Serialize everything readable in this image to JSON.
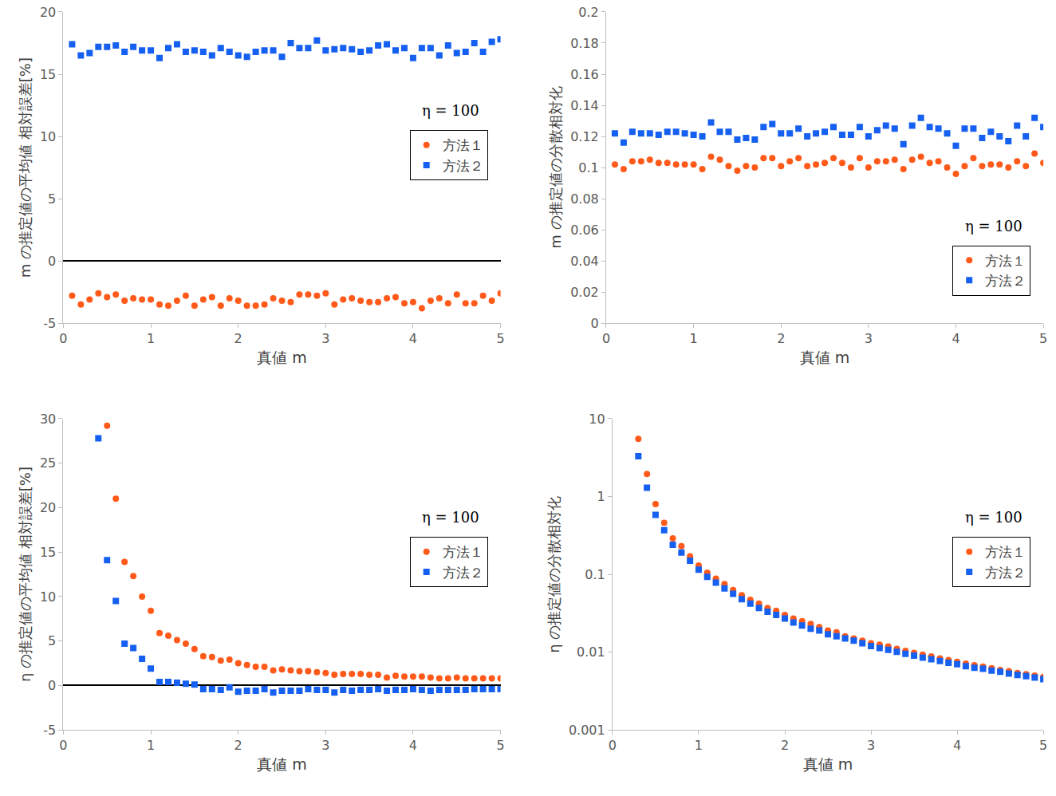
{
  "chart_data": [
    {
      "type": "scatter",
      "xlabel": "真値 m",
      "ylabel": "m の推定値の平均値 相対誤差[%]",
      "annotation": "η = 100",
      "xlim": [
        0,
        5
      ],
      "xticks": [
        0,
        1,
        2,
        3,
        4,
        5
      ],
      "ylim": [
        -5,
        20
      ],
      "yticks": [
        -5,
        0,
        5,
        10,
        15,
        20
      ],
      "grid": false,
      "legend": "right",
      "x": [
        0.1,
        0.2,
        0.3,
        0.4,
        0.5,
        0.6,
        0.7,
        0.8,
        0.9,
        1.0,
        1.1,
        1.2,
        1.3,
        1.4,
        1.5,
        1.6,
        1.7,
        1.8,
        1.9,
        2.0,
        2.1,
        2.2,
        2.3,
        2.4,
        2.5,
        2.6,
        2.7,
        2.8,
        2.9,
        3.0,
        3.1,
        3.2,
        3.3,
        3.4,
        3.5,
        3.6,
        3.7,
        3.8,
        3.9,
        4.0,
        4.1,
        4.2,
        4.3,
        4.4,
        4.5,
        4.6,
        4.7,
        4.8,
        4.9,
        5.0
      ],
      "series": [
        {
          "name": "方法１",
          "color": "#ff5a1a",
          "marker": "circle",
          "values": [
            -2.8,
            -3.5,
            -3.1,
            -2.6,
            -2.9,
            -2.7,
            -3.2,
            -3.0,
            -3.1,
            -3.1,
            -3.5,
            -3.6,
            -3.2,
            -2.8,
            -3.6,
            -3.1,
            -2.9,
            -3.6,
            -3.0,
            -3.2,
            -3.6,
            -3.6,
            -3.5,
            -3.0,
            -3.2,
            -3.3,
            -2.7,
            -2.7,
            -2.8,
            -2.6,
            -3.5,
            -3.1,
            -3.0,
            -3.2,
            -3.3,
            -3.3,
            -3.0,
            -2.9,
            -3.4,
            -3.3,
            -3.8,
            -3.2,
            -3.0,
            -3.4,
            -2.7,
            -3.4,
            -3.4,
            -2.8,
            -3.2,
            -2.6
          ]
        },
        {
          "name": "方法２",
          "color": "#1560f0",
          "marker": "square",
          "values": [
            17.4,
            16.5,
            16.7,
            17.2,
            17.2,
            17.3,
            16.8,
            17.2,
            16.9,
            16.9,
            16.3,
            17.1,
            17.4,
            16.8,
            16.9,
            16.8,
            16.5,
            17.1,
            16.8,
            16.5,
            16.4,
            16.8,
            16.9,
            16.9,
            16.4,
            17.5,
            17.1,
            17.1,
            17.7,
            16.9,
            17.0,
            17.1,
            17.0,
            16.8,
            16.9,
            17.3,
            17.4,
            16.9,
            17.1,
            16.3,
            17.1,
            17.1,
            16.5,
            17.3,
            16.7,
            16.8,
            17.5,
            16.8,
            17.6,
            17.8
          ]
        }
      ]
    },
    {
      "type": "scatter",
      "xlabel": "真値 m",
      "ylabel": "m の推定値の分散相対化",
      "annotation": "η = 100",
      "xlim": [
        0,
        5
      ],
      "xticks": [
        0,
        1,
        2,
        3,
        4,
        5
      ],
      "ylim": [
        0,
        0.2
      ],
      "yticks": [
        0,
        0.02,
        0.04,
        0.06,
        0.08,
        0.1,
        0.12,
        0.14,
        0.16,
        0.18,
        0.2
      ],
      "grid": false,
      "legend": "lower right",
      "x": [
        0.1,
        0.2,
        0.3,
        0.4,
        0.5,
        0.6,
        0.7,
        0.8,
        0.9,
        1.0,
        1.1,
        1.2,
        1.3,
        1.4,
        1.5,
        1.6,
        1.7,
        1.8,
        1.9,
        2.0,
        2.1,
        2.2,
        2.3,
        2.4,
        2.5,
        2.6,
        2.7,
        2.8,
        2.9,
        3.0,
        3.1,
        3.2,
        3.3,
        3.4,
        3.5,
        3.6,
        3.7,
        3.8,
        3.9,
        4.0,
        4.1,
        4.2,
        4.3,
        4.4,
        4.5,
        4.6,
        4.7,
        4.8,
        4.9,
        5.0
      ],
      "series": [
        {
          "name": "方法１",
          "color": "#ff5a1a",
          "marker": "circle",
          "values": [
            0.102,
            0.099,
            0.104,
            0.104,
            0.105,
            0.103,
            0.103,
            0.102,
            0.102,
            0.102,
            0.099,
            0.107,
            0.105,
            0.101,
            0.098,
            0.101,
            0.1,
            0.106,
            0.106,
            0.101,
            0.104,
            0.106,
            0.101,
            0.102,
            0.103,
            0.106,
            0.103,
            0.1,
            0.106,
            0.1,
            0.104,
            0.104,
            0.105,
            0.099,
            0.105,
            0.107,
            0.103,
            0.104,
            0.1,
            0.096,
            0.101,
            0.106,
            0.101,
            0.102,
            0.102,
            0.1,
            0.104,
            0.101,
            0.109,
            0.103
          ]
        },
        {
          "name": "方法２",
          "color": "#1560f0",
          "marker": "square",
          "values": [
            0.122,
            0.116,
            0.123,
            0.122,
            0.122,
            0.121,
            0.123,
            0.123,
            0.122,
            0.121,
            0.12,
            0.129,
            0.123,
            0.123,
            0.118,
            0.119,
            0.118,
            0.126,
            0.128,
            0.122,
            0.122,
            0.125,
            0.12,
            0.122,
            0.123,
            0.126,
            0.121,
            0.121,
            0.126,
            0.12,
            0.124,
            0.127,
            0.125,
            0.115,
            0.127,
            0.132,
            0.126,
            0.125,
            0.122,
            0.114,
            0.125,
            0.125,
            0.119,
            0.123,
            0.12,
            0.117,
            0.127,
            0.12,
            0.132,
            0.126
          ]
        }
      ]
    },
    {
      "type": "scatter",
      "xlabel": "真値 m",
      "ylabel": "η の推定値の平均値 相対誤差[%]",
      "annotation": "η = 100",
      "xlim": [
        0,
        5
      ],
      "xticks": [
        0,
        1,
        2,
        3,
        4,
        5
      ],
      "ylim": [
        -5,
        30
      ],
      "yticks": [
        -5,
        0,
        5,
        10,
        15,
        20,
        25,
        30
      ],
      "grid": false,
      "legend": "right",
      "x": [
        0.1,
        0.2,
        0.3,
        0.4,
        0.5,
        0.6,
        0.7,
        0.8,
        0.9,
        1.0,
        1.1,
        1.2,
        1.3,
        1.4,
        1.5,
        1.6,
        1.7,
        1.8,
        1.9,
        2.0,
        2.1,
        2.2,
        2.3,
        2.4,
        2.5,
        2.6,
        2.7,
        2.8,
        2.9,
        3.0,
        3.1,
        3.2,
        3.3,
        3.4,
        3.5,
        3.6,
        3.7,
        3.8,
        3.9,
        4.0,
        4.1,
        4.2,
        4.3,
        4.4,
        4.5,
        4.6,
        4.7,
        4.8,
        4.9,
        5.0
      ],
      "series": [
        {
          "name": "方法１",
          "color": "#ff5a1a",
          "marker": "circle",
          "values": [
            null,
            null,
            null,
            null,
            29.2,
            21.0,
            13.9,
            12.3,
            10.0,
            8.4,
            5.9,
            5.6,
            5.1,
            4.7,
            4.1,
            3.3,
            3.2,
            2.8,
            2.9,
            2.5,
            2.3,
            2.1,
            2.1,
            1.7,
            1.8,
            1.7,
            1.6,
            1.6,
            1.5,
            1.4,
            1.2,
            1.3,
            1.3,
            1.3,
            1.2,
            1.2,
            0.9,
            1.1,
            1.0,
            1.0,
            1.0,
            0.9,
            0.8,
            0.8,
            0.9,
            0.8,
            0.8,
            0.8,
            0.8,
            0.8
          ]
        },
        {
          "name": "方法２",
          "color": "#1560f0",
          "marker": "square",
          "values": [
            null,
            null,
            null,
            27.8,
            14.1,
            9.5,
            4.7,
            4.2,
            3.0,
            1.9,
            0.4,
            0.4,
            0.3,
            0.2,
            0.1,
            -0.4,
            -0.4,
            -0.5,
            -0.2,
            -0.7,
            -0.6,
            -0.6,
            -0.4,
            -0.8,
            -0.6,
            -0.6,
            -0.6,
            -0.4,
            -0.5,
            -0.5,
            -0.8,
            -0.5,
            -0.6,
            -0.5,
            -0.5,
            -0.4,
            -0.6,
            -0.5,
            -0.5,
            -0.4,
            -0.5,
            -0.6,
            -0.5,
            -0.5,
            -0.5,
            -0.5,
            -0.4,
            -0.4,
            -0.4,
            -0.4
          ]
        }
      ]
    },
    {
      "type": "scatter",
      "xlabel": "真値 m",
      "ylabel": "η の推定値の分散相対化",
      "annotation": "η = 100",
      "xlim": [
        0,
        5
      ],
      "xticks": [
        0,
        1,
        2,
        3,
        4,
        5
      ],
      "ylim": [
        0.001,
        10
      ],
      "yticks": [
        0.001,
        0.01,
        0.1,
        1,
        10
      ],
      "log": "y",
      "grid": false,
      "legend": "right",
      "x": [
        0.1,
        0.2,
        0.3,
        0.4,
        0.5,
        0.6,
        0.7,
        0.8,
        0.9,
        1.0,
        1.1,
        1.2,
        1.3,
        1.4,
        1.5,
        1.6,
        1.7,
        1.8,
        1.9,
        2.0,
        2.1,
        2.2,
        2.3,
        2.4,
        2.5,
        2.6,
        2.7,
        2.8,
        2.9,
        3.0,
        3.1,
        3.2,
        3.3,
        3.4,
        3.5,
        3.6,
        3.7,
        3.8,
        3.9,
        4.0,
        4.1,
        4.2,
        4.3,
        4.4,
        4.5,
        4.6,
        4.7,
        4.8,
        4.9,
        5.0
      ],
      "series": [
        {
          "name": "方法１",
          "color": "#ff5a1a",
          "marker": "circle",
          "values": [
            null,
            null,
            5.5,
            1.95,
            0.8,
            0.46,
            0.29,
            0.23,
            0.17,
            0.13,
            0.105,
            0.088,
            0.075,
            0.063,
            0.054,
            0.047,
            0.042,
            0.037,
            0.034,
            0.03,
            0.027,
            0.025,
            0.023,
            0.021,
            0.019,
            0.018,
            0.016,
            0.015,
            0.014,
            0.013,
            0.0125,
            0.0118,
            0.011,
            0.0104,
            0.0098,
            0.0093,
            0.0088,
            0.0083,
            0.0079,
            0.0075,
            0.0071,
            0.0068,
            0.0065,
            0.0062,
            0.0059,
            0.0057,
            0.0054,
            0.0052,
            0.005,
            0.0048
          ]
        },
        {
          "name": "方法２",
          "color": "#1560f0",
          "marker": "square",
          "values": [
            null,
            null,
            3.3,
            1.3,
            0.58,
            0.37,
            0.24,
            0.19,
            0.15,
            0.115,
            0.093,
            0.078,
            0.066,
            0.056,
            0.048,
            0.042,
            0.037,
            0.033,
            0.03,
            0.027,
            0.024,
            0.022,
            0.02,
            0.019,
            0.017,
            0.016,
            0.015,
            0.014,
            0.013,
            0.012,
            0.0113,
            0.0107,
            0.0101,
            0.0095,
            0.009,
            0.0085,
            0.0081,
            0.0077,
            0.0073,
            0.007,
            0.0066,
            0.0063,
            0.0061,
            0.0058,
            0.0056,
            0.0053,
            0.0051,
            0.0049,
            0.0047,
            0.0045
          ]
        }
      ]
    }
  ]
}
